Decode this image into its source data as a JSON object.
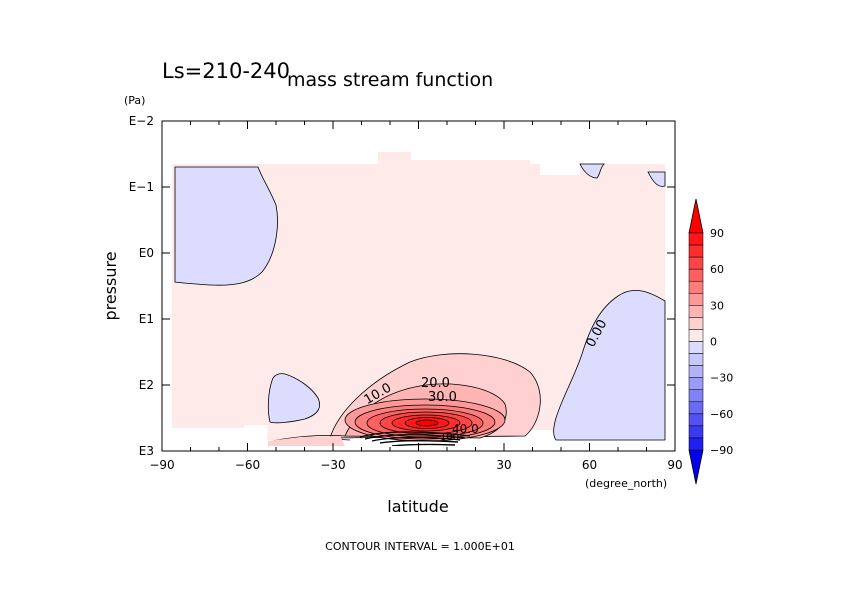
{
  "chart_data": {
    "type": "contour",
    "title": "mass stream function",
    "subtitle": "Ls=210-240",
    "xlabel": "latitude",
    "xunit": "(degree_north)",
    "ylabel": "pressure",
    "yunit": "(Pa)",
    "x_ticks": [
      -90,
      -60,
      -30,
      0,
      30,
      60,
      90
    ],
    "x_tick_labels": [
      "−90",
      "−60",
      "−30",
      "0",
      "30",
      "60",
      "90"
    ],
    "xlim": [
      -90,
      90
    ],
    "y_scale": "log",
    "y_ticks": [
      0.01,
      0.1,
      1,
      10,
      100,
      1000
    ],
    "y_tick_labels": [
      "E−2",
      "E−1",
      "E0",
      "E1",
      "E2",
      "E3"
    ],
    "ylim": [
      0.01,
      1000
    ],
    "contour_interval_text": "CONTOUR INTERVAL = 1.000E+01",
    "contour_labels": [
      "0.00",
      "10.0",
      "20.0",
      "30.0",
      "40.0",
      "100"
    ],
    "colorbar": {
      "ticks": [
        90,
        60,
        30,
        0,
        -30,
        -60,
        -90
      ],
      "tick_labels": [
        "90",
        "60",
        "30",
        "0",
        "−30",
        "−60",
        "−90"
      ],
      "levels": [
        -100,
        -90,
        -80,
        -70,
        -60,
        -50,
        -40,
        -30,
        -20,
        -10,
        0,
        10,
        20,
        30,
        40,
        50,
        60,
        70,
        80,
        90,
        100
      ],
      "colors": [
        "#0000ee",
        "#2020f0",
        "#3a3af2",
        "#5252f4",
        "#6a6af6",
        "#8282f8",
        "#9a9afa",
        "#b2b2fb",
        "#c8c8fd",
        "#dcdcff",
        "#ffeaea",
        "#ffd0d0",
        "#ffb4b4",
        "#ff9898",
        "#ff7c7c",
        "#ff6060",
        "#ff4646",
        "#ff2c2c",
        "#ff1616",
        "#ff0000"
      ]
    },
    "features": [
      {
        "sign": "negative",
        "lat_range": [
          -88,
          -57
        ],
        "p_range": [
          0.13,
          4
        ]
      },
      {
        "sign": "negative",
        "lat_range": [
          -50,
          -33
        ],
        "p_range": [
          90,
          280
        ]
      },
      {
        "sign": "negative",
        "lat_range": [
          45,
          87
        ],
        "p_range": [
          6,
          950
        ]
      },
      {
        "sign": "positive",
        "center_lat": 2,
        "center_p": 350,
        "max": 100
      }
    ]
  }
}
